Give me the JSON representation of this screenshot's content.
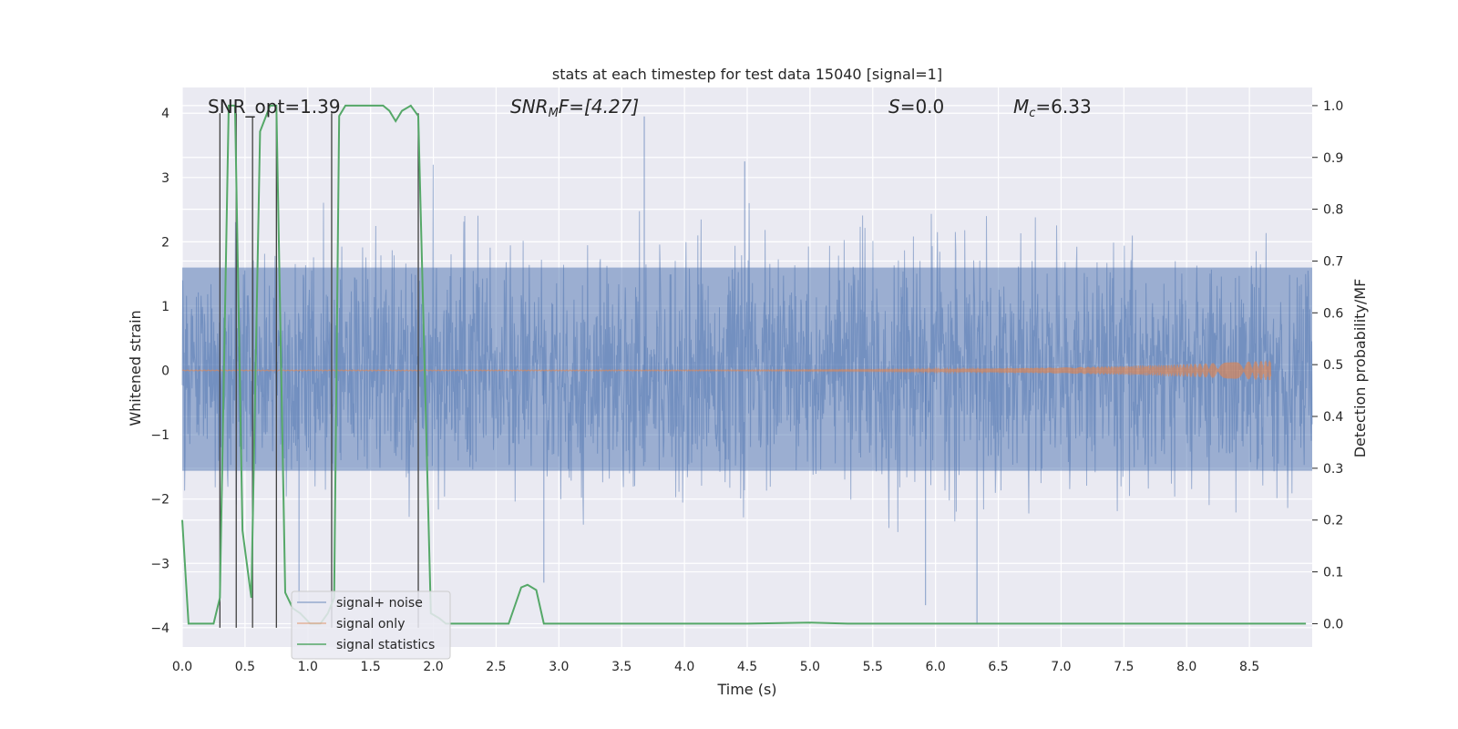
{
  "chart_data": {
    "type": "line",
    "title": "stats at each timestep for test data 15040 [signal=1]",
    "xlabel": "Time (s)",
    "ylabel_left": "Whitened strain",
    "ylabel_right": "Detection probability/MF",
    "xlim": [
      0,
      9.0
    ],
    "ylim_left": [
      -4.3,
      4.4
    ],
    "ylim_right": [
      -0.045,
      1.035
    ],
    "x_ticks": [
      0.0,
      0.5,
      1.0,
      1.5,
      2.0,
      2.5,
      3.0,
      3.5,
      4.0,
      4.5,
      5.0,
      5.5,
      6.0,
      6.5,
      7.0,
      7.5,
      8.0,
      8.5
    ],
    "x_tick_labels": [
      "0.0",
      "0.5",
      "1.0",
      "1.5",
      "2.0",
      "2.5",
      "3.0",
      "3.5",
      "4.0",
      "4.5",
      "5.0",
      "5.5",
      "6.0",
      "6.5",
      "7.0",
      "7.5",
      "8.0",
      "8.5"
    ],
    "y_left_ticks": [
      4,
      3,
      2,
      1,
      0,
      -1,
      -2,
      -3,
      -4
    ],
    "y_left_tick_labels": [
      "4",
      "3",
      "2",
      "1",
      "0",
      "−1",
      "−2",
      "−3",
      "−4"
    ],
    "y_right_ticks": [
      1.0,
      0.9,
      0.8,
      0.7,
      0.6,
      0.5,
      0.4,
      0.3,
      0.2,
      0.1,
      0.0
    ],
    "y_right_tick_labels": [
      "1.0",
      "0.9",
      "0.8",
      "0.7",
      "0.6",
      "0.5",
      "0.4",
      "0.3",
      "0.2",
      "0.1",
      "0.0"
    ],
    "annotations": {
      "snr_opt": "SNR_opt=1.39",
      "snr_mf_name": "SNR",
      "snr_mf_sub": "M",
      "snr_mf_rest": "F=[4.27]",
      "s_name": "S",
      "s_rest": "=0.0",
      "mc_name": "M",
      "mc_sub": "c",
      "mc_rest": "=6.33"
    },
    "legend": {
      "position": "lower-left",
      "entries": [
        "signal+ noise",
        "signal only",
        "signal statistics"
      ]
    },
    "series": [
      {
        "name": "signal+ noise",
        "axis": "left",
        "style": "dense-noise",
        "color": "#4c72b0",
        "x_range": [
          0,
          9.0
        ],
        "envelope_sigma": 0.75,
        "typical_upper": 2.0,
        "typical_lower": -2.0,
        "peaks": [
          {
            "x": 3.68,
            "y": 3.95
          },
          {
            "x": 6.33,
            "y": -3.95
          },
          {
            "x": 5.92,
            "y": -3.65
          },
          {
            "x": 4.48,
            "y": 3.25
          },
          {
            "x": 0.93,
            "y": -3.6
          },
          {
            "x": 2.88,
            "y": -3.3
          }
        ]
      },
      {
        "name": "signal only",
        "axis": "left",
        "style": "chirp",
        "color": "#dd8452",
        "x_range": [
          0,
          8.67
        ],
        "amplitude_end": 0.15
      },
      {
        "name": "signal statistics",
        "axis": "right",
        "color": "#55a868",
        "x": [
          0.0,
          0.05,
          0.25,
          0.3,
          0.37,
          0.42,
          0.48,
          0.55,
          0.62,
          0.7,
          0.75,
          0.82,
          0.88,
          0.94,
          1.02,
          1.1,
          1.16,
          1.21,
          1.25,
          1.3,
          1.4,
          1.6,
          1.65,
          1.7,
          1.75,
          1.82,
          1.88,
          1.98,
          2.05,
          2.1,
          2.3,
          2.6,
          2.7,
          2.75,
          2.82,
          2.88,
          3.5,
          4.5,
          5.0,
          5.3,
          6.0,
          7.0,
          8.0,
          8.95
        ],
        "y": [
          0.2,
          0.0,
          0.0,
          0.05,
          1.0,
          1.0,
          0.18,
          0.05,
          0.95,
          1.0,
          1.0,
          0.06,
          0.03,
          0.02,
          0.0,
          0.0,
          0.02,
          0.05,
          0.98,
          1.0,
          1.0,
          1.0,
          0.99,
          0.97,
          0.99,
          1.0,
          0.98,
          0.02,
          0.01,
          0.0,
          0.0,
          0.0,
          0.07,
          0.075,
          0.065,
          0.0,
          0.0,
          0.0,
          0.002,
          0.0,
          0.0,
          0.0,
          0.0,
          0.0
        ]
      },
      {
        "name": "vertical markers",
        "axis": "left",
        "color": "#404040",
        "x": [
          0.3,
          0.43,
          0.56,
          0.75,
          1.19,
          1.88
        ],
        "y_top": [
          4.0,
          4.0,
          3.95,
          4.0,
          4.0,
          4.0
        ],
        "y_bottom": -4.0
      }
    ]
  }
}
